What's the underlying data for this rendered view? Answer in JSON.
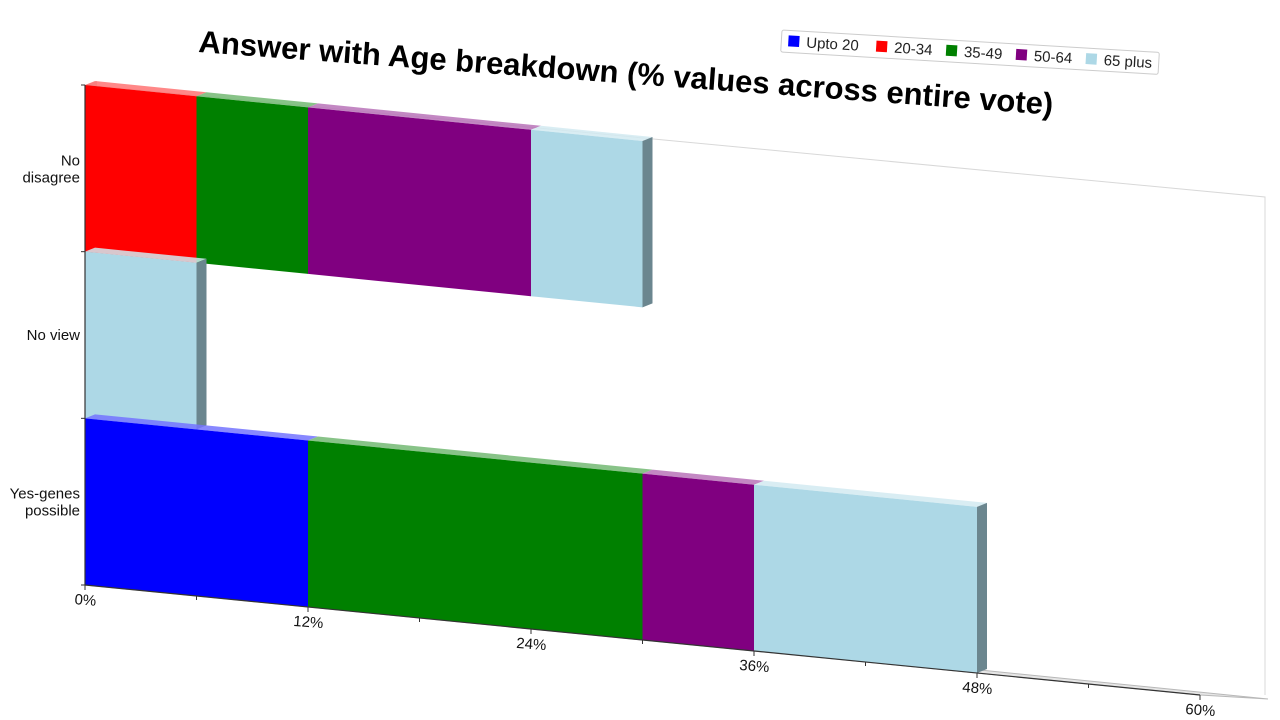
{
  "chart_data": {
    "type": "bar",
    "orientation": "horizontal",
    "stacked": true,
    "title": "Answer with Age breakdown (% values across entire vote)",
    "categories": [
      "No disagree",
      "No view",
      "Yes-genes possible"
    ],
    "category_lines": [
      [
        "No",
        "disagree"
      ],
      [
        "No view"
      ],
      [
        "Yes-genes",
        "possible"
      ]
    ],
    "series": [
      {
        "name": "Upto 20",
        "color": "#0000ff",
        "values": [
          0,
          0,
          12
        ]
      },
      {
        "name": "20-34",
        "color": "#ff0000",
        "values": [
          6,
          0,
          0
        ]
      },
      {
        "name": "35-49",
        "color": "#008000",
        "values": [
          6,
          0,
          18
        ]
      },
      {
        "name": "50-64",
        "color": "#800080",
        "values": [
          12,
          0,
          6
        ]
      },
      {
        "name": "65 plus",
        "color": "#add8e6",
        "values": [
          6,
          6,
          12
        ]
      }
    ],
    "xlim": [
      0,
      60
    ],
    "x_ticks": [
      "0%",
      "12%",
      "24%",
      "36%",
      "48%",
      "60%"
    ],
    "xlabel": "",
    "ylabel": "",
    "legend_position": "top-right",
    "grid": false,
    "style": "3d-perspective"
  }
}
